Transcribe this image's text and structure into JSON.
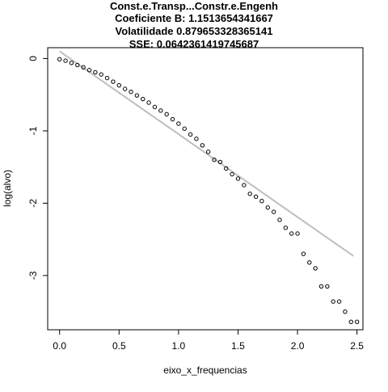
{
  "chart_data": {
    "type": "scatter",
    "title_lines": [
      "Const.e.Transp...Constr.e.Engenh",
      "Coeficiente B:  1.1513654341667",
      "Volatilidade 0.879653328365141",
      "SSE: 0.0642361419745687"
    ],
    "xlabel": "eixo_x_frequencias",
    "ylabel": "log(alvo)",
    "xlim": [
      -0.1,
      2.55
    ],
    "ylim": [
      -3.75,
      0.15
    ],
    "x_ticks": [
      0.0,
      0.5,
      1.0,
      1.5,
      2.0,
      2.5
    ],
    "x_tick_labels": [
      "0.0",
      "0.5",
      "1.0",
      "1.5",
      "2.0",
      "2.5"
    ],
    "y_ticks": [
      0,
      -1,
      -2,
      -3
    ],
    "y_tick_labels": [
      "0",
      "-1",
      "-2",
      "-3"
    ],
    "grid": false,
    "points": [
      [
        0.0,
        -0.01
      ],
      [
        0.05,
        -0.03
      ],
      [
        0.1,
        -0.06
      ],
      [
        0.15,
        -0.09
      ],
      [
        0.2,
        -0.12
      ],
      [
        0.25,
        -0.16
      ],
      [
        0.3,
        -0.19
      ],
      [
        0.35,
        -0.22
      ],
      [
        0.4,
        -0.27
      ],
      [
        0.45,
        -0.32
      ],
      [
        0.5,
        -0.37
      ],
      [
        0.55,
        -0.42
      ],
      [
        0.6,
        -0.46
      ],
      [
        0.65,
        -0.51
      ],
      [
        0.7,
        -0.56
      ],
      [
        0.75,
        -0.61
      ],
      [
        0.8,
        -0.67
      ],
      [
        0.85,
        -0.72
      ],
      [
        0.9,
        -0.77
      ],
      [
        0.95,
        -0.84
      ],
      [
        1.0,
        -0.9
      ],
      [
        1.05,
        -0.97
      ],
      [
        1.1,
        -1.05
      ],
      [
        1.15,
        -1.11
      ],
      [
        1.2,
        -1.2
      ],
      [
        1.25,
        -1.29
      ],
      [
        1.3,
        -1.4
      ],
      [
        1.35,
        -1.43
      ],
      [
        1.4,
        -1.52
      ],
      [
        1.45,
        -1.6
      ],
      [
        1.5,
        -1.66
      ],
      [
        1.55,
        -1.75
      ],
      [
        1.6,
        -1.87
      ],
      [
        1.65,
        -1.91
      ],
      [
        1.7,
        -1.97
      ],
      [
        1.75,
        -2.06
      ],
      [
        1.8,
        -2.12
      ],
      [
        1.85,
        -2.23
      ],
      [
        1.9,
        -2.34
      ],
      [
        1.95,
        -2.42
      ],
      [
        2.0,
        -2.42
      ],
      [
        2.05,
        -2.7
      ],
      [
        2.1,
        -2.82
      ],
      [
        2.15,
        -2.9
      ],
      [
        2.2,
        -3.15
      ],
      [
        2.25,
        -3.15
      ],
      [
        2.3,
        -3.36
      ],
      [
        2.35,
        -3.36
      ],
      [
        2.4,
        -3.5
      ],
      [
        2.45,
        -3.64
      ],
      [
        2.5,
        -3.64
      ]
    ],
    "fit_line": {
      "x": [
        0.0,
        2.47
      ],
      "y": [
        0.1,
        -2.73
      ],
      "color": "#bebebe"
    }
  }
}
